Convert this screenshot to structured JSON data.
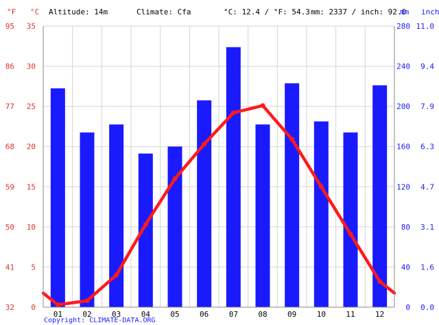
{
  "header": {
    "altitude": "Altitude: 14m",
    "climate": "Climate: Cfa",
    "avg_temp": "°C: 12.4 / °F: 54.3",
    "precip_total": "mm: 2337 / inch: 92.0"
  },
  "units": {
    "fahrenheit": "°F",
    "celsius": "°C",
    "mm": "mm",
    "inch": "inch"
  },
  "copyright": "Copyright: CLIMATE-DATA.ORG",
  "colors": {
    "bars": "#1a1aff",
    "line": "#ff1a1a",
    "temp_axis": "#e03030",
    "precip_axis": "#1a1aff",
    "grid": "#d4d4d4"
  },
  "chart_data": {
    "type": "bar",
    "categories": [
      "01",
      "02",
      "03",
      "04",
      "05",
      "06",
      "07",
      "08",
      "09",
      "10",
      "11",
      "12"
    ],
    "series": [
      {
        "type": "bar",
        "axis": "precipitation",
        "values": [
          218,
          174,
          182,
          153,
          160,
          206,
          259,
          182,
          223,
          185,
          174,
          221
        ]
      },
      {
        "type": "line",
        "axis": "temperature",
        "values": [
          0.3,
          0.8,
          4.0,
          10.3,
          16.0,
          20.3,
          24.2,
          25.1,
          20.9,
          15.0,
          9.1,
          3.2
        ]
      }
    ],
    "temp_axis": {
      "celsius_ticks": [
        "0",
        "5",
        "10",
        "15",
        "20",
        "25",
        "30",
        "35"
      ],
      "fahrenheit_ticks": [
        "32",
        "41",
        "50",
        "59",
        "68",
        "77",
        "86",
        "95"
      ],
      "ylim": [
        0,
        35
      ]
    },
    "precip_axis": {
      "mm_ticks": [
        "0",
        "40",
        "80",
        "120",
        "160",
        "200",
        "240",
        "280"
      ],
      "inch_ticks": [
        "0.0",
        "1.6",
        "3.1",
        "4.7",
        "6.3",
        "7.9",
        "9.4",
        "11.0"
      ],
      "ylim": [
        0,
        280
      ]
    },
    "grid": true
  }
}
